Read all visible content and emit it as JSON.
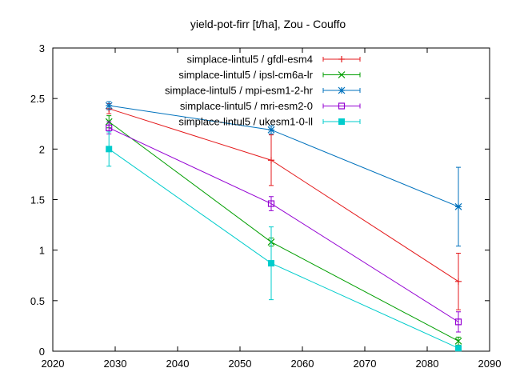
{
  "chart_data": {
    "type": "line",
    "title": "yield-pot-firr [t/ha], Zou - Couffo",
    "xlabel": "",
    "ylabel": "",
    "xlim": [
      2020,
      2090
    ],
    "ylim": [
      0,
      3
    ],
    "x_ticks": [
      2020,
      2030,
      2040,
      2050,
      2060,
      2070,
      2080,
      2090
    ],
    "y_ticks": [
      0,
      0.5,
      1,
      1.5,
      2,
      2.5,
      3
    ],
    "grid": false,
    "legend_position": "top-right",
    "x": [
      2029,
      2055,
      2085
    ],
    "series": [
      {
        "name": "simplace-lintul5 / gfdl-esm4",
        "color": "#e41a1c",
        "marker": "plus",
        "values": [
          2.4,
          1.89,
          0.69
        ],
        "err": [
          0.05,
          0.25,
          0.28
        ]
      },
      {
        "name": "simplace-lintul5 / ipsl-cm6a-lr",
        "color": "#009e00",
        "marker": "x",
        "values": [
          2.27,
          1.08,
          0.1
        ],
        "err": [
          0.06,
          0.04,
          0.04
        ]
      },
      {
        "name": "simplace-lintul5 / mpi-esm1-2-hr",
        "color": "#0072bd",
        "marker": "star",
        "values": [
          2.43,
          2.19,
          1.43
        ],
        "err": [
          0.04,
          0.04,
          0.39
        ]
      },
      {
        "name": "simplace-lintul5 / mri-esm2-0",
        "color": "#9400d3",
        "marker": "square-open",
        "values": [
          2.21,
          1.46,
          0.29
        ],
        "err": [
          0.06,
          0.07,
          0.1
        ]
      },
      {
        "name": "simplace-lintul5 / ukesm1-0-ll",
        "color": "#00cccc",
        "marker": "square-filled",
        "values": [
          2.0,
          0.87,
          0.03
        ],
        "err": [
          0.17,
          0.36,
          0.02
        ]
      }
    ]
  }
}
